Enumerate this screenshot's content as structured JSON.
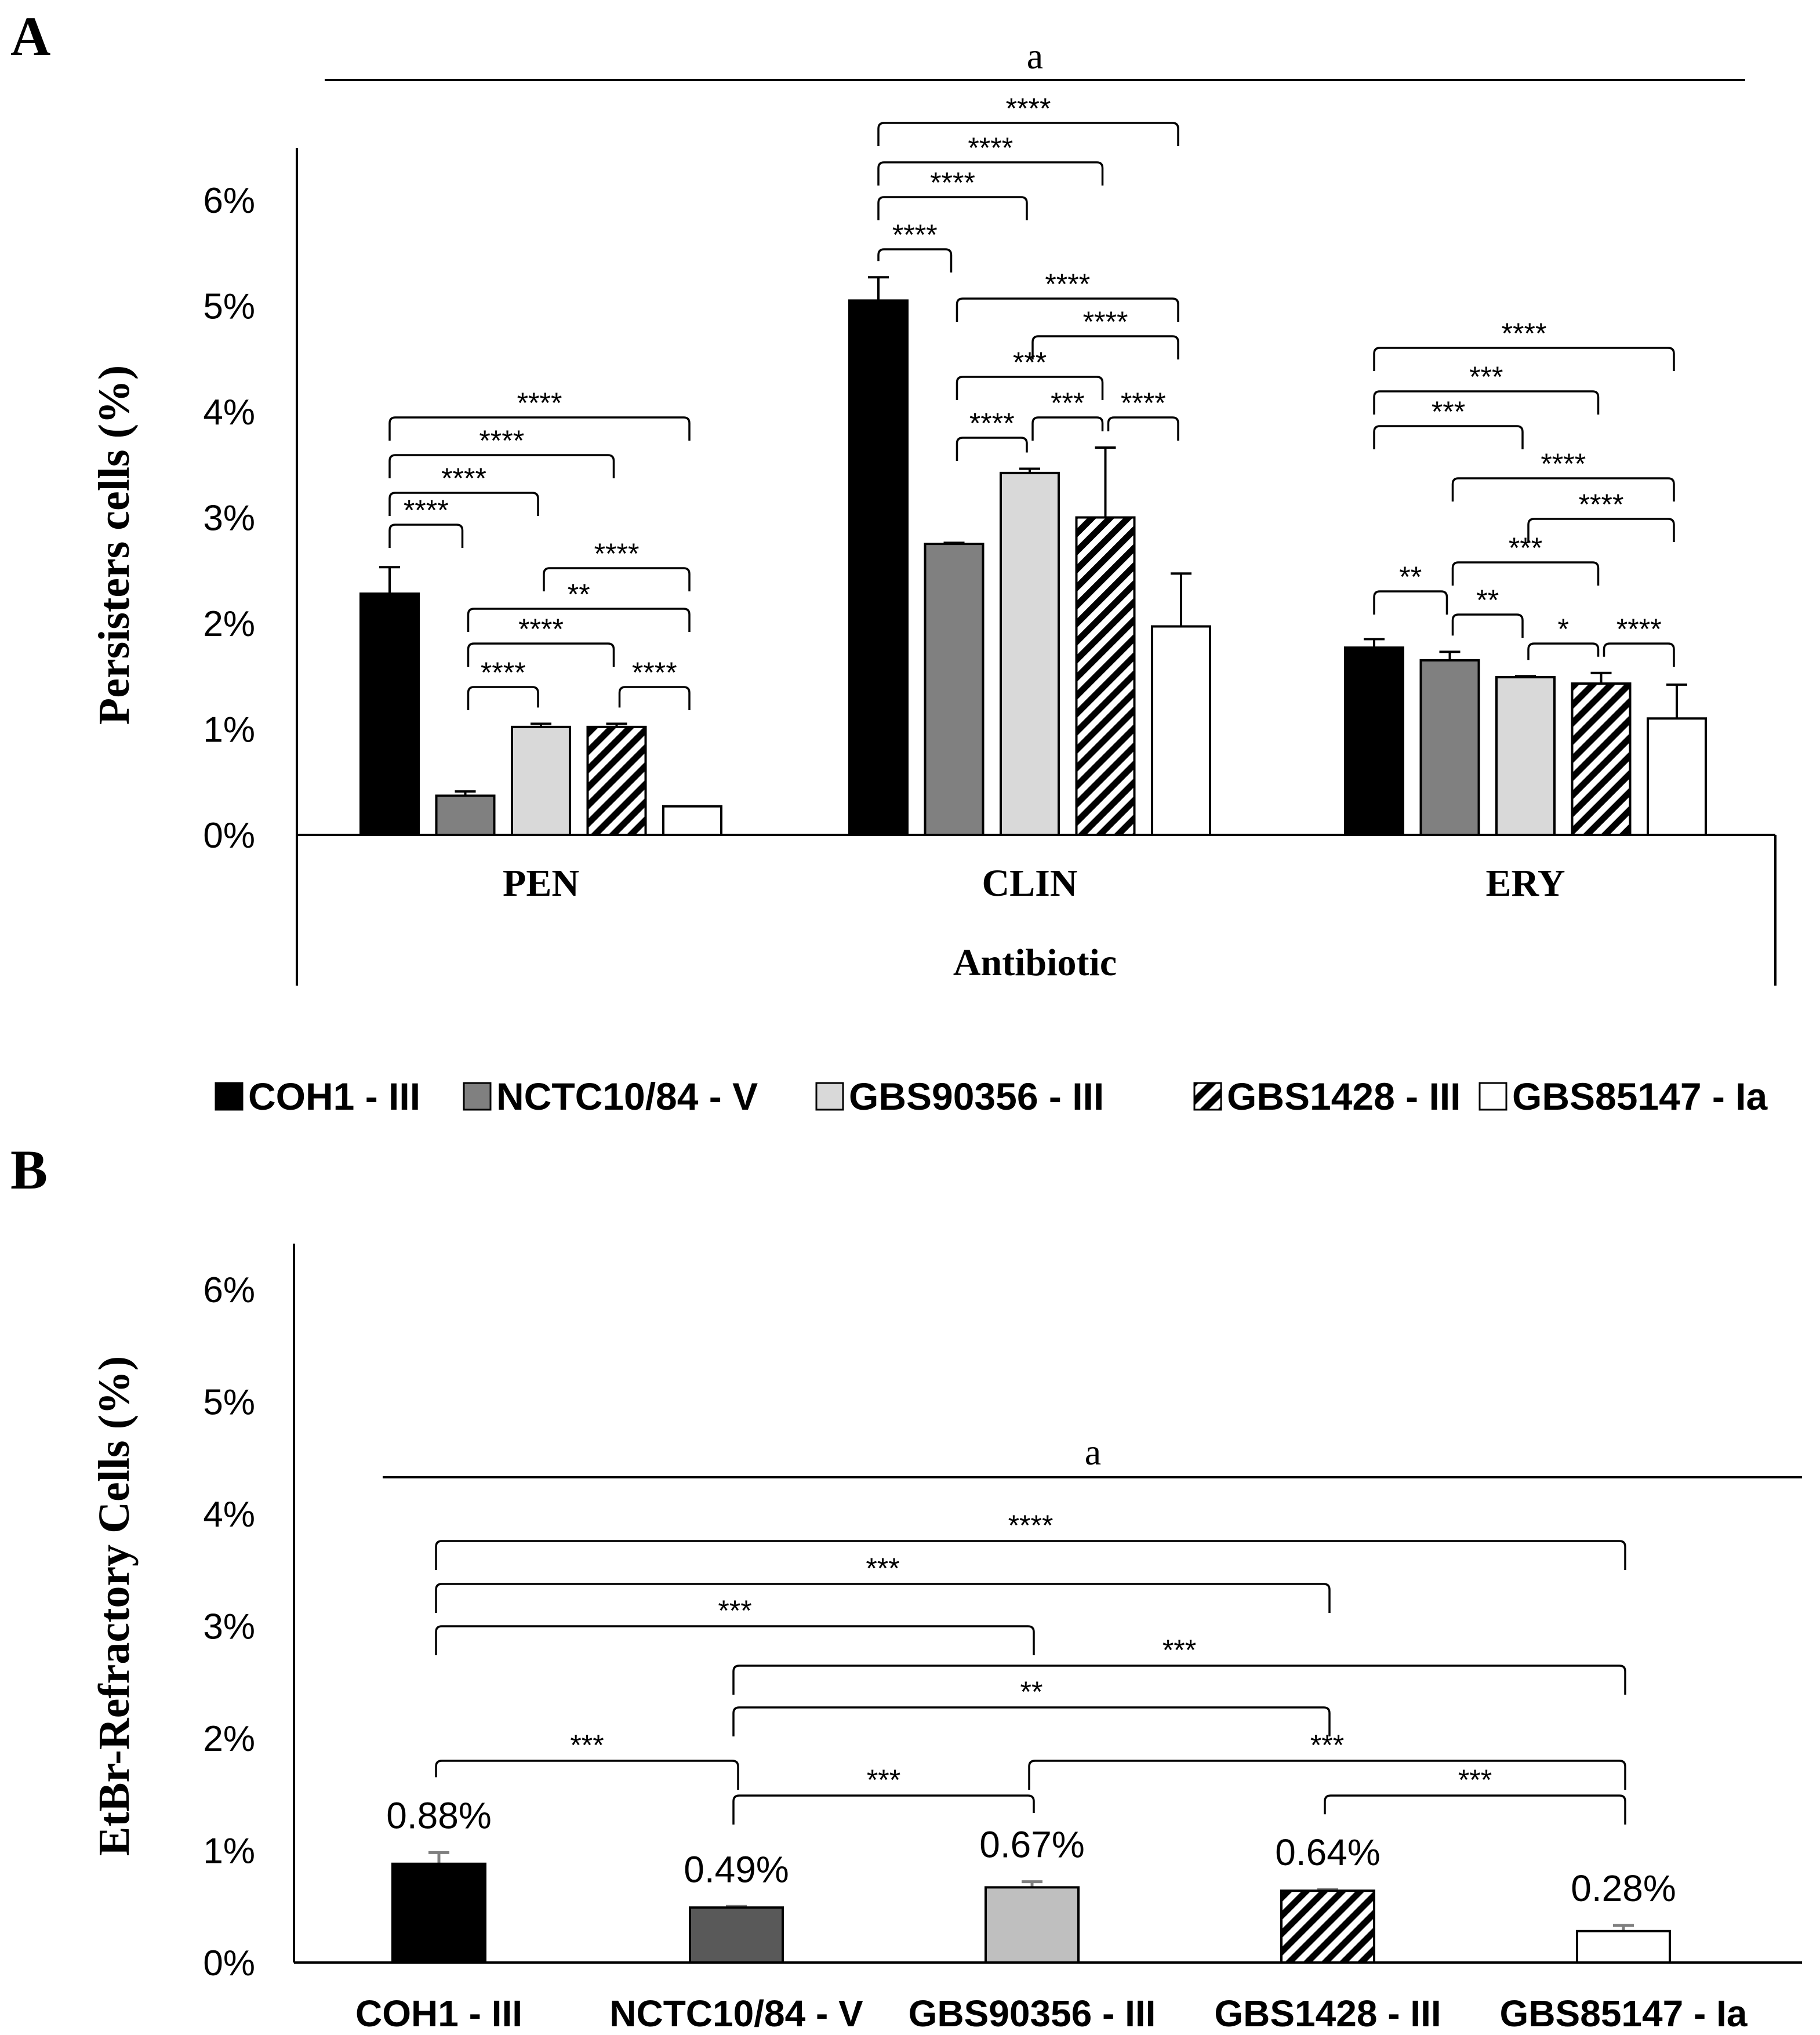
{
  "colors": {
    "ink": "#000000",
    "coh1": "#000000",
    "nctc": "#808080",
    "gbs90356_a": "#d9d9d9",
    "gbs90356_b": "#bfbfbf",
    "nctc_b": "#595959",
    "white": "#ffffff",
    "errbar_b": "#7f7f7f"
  },
  "legend": [
    {
      "name": "COH1 - III",
      "pattern": "black"
    },
    {
      "name": "NCTC10/84 - V",
      "pattern": "gray"
    },
    {
      "name": "GBS90356 - III",
      "pattern": "light"
    },
    {
      "name": "GBS1428 - III",
      "pattern": "hatch"
    },
    {
      "name": "GBS85147 - Ia",
      "pattern": "white"
    }
  ],
  "chart_data": [
    {
      "panel": "A",
      "type": "bar",
      "ylabel": "Persisters cells (%)",
      "xlabel": "Antibiotic",
      "ylim": [
        0,
        6.5
      ],
      "yticks": [
        "0%",
        "1%",
        "2%",
        "3%",
        "4%",
        "5%",
        "6%"
      ],
      "top_annotation": "a",
      "categories": [
        "PEN",
        "CLIN",
        "ERY"
      ],
      "series": [
        {
          "name": "COH1 - III",
          "values": [
            2.28,
            5.05,
            1.77
          ],
          "errors": [
            0.25,
            0.22,
            0.08
          ]
        },
        {
          "name": "NCTC10/84 - V",
          "values": [
            0.37,
            2.75,
            1.65
          ],
          "errors": [
            0.04,
            0.01,
            0.08
          ]
        },
        {
          "name": "GBS90356 - III",
          "values": [
            1.02,
            3.42,
            1.49
          ],
          "errors": [
            0.03,
            0.04,
            0.01
          ]
        },
        {
          "name": "GBS1428 - III",
          "values": [
            1.02,
            3.0,
            1.43
          ],
          "errors": [
            0.03,
            0.66,
            0.1
          ]
        },
        {
          "name": "GBS85147 - Ia",
          "values": [
            0.27,
            1.97,
            1.1
          ],
          "errors": [
            0.0,
            0.5,
            0.32
          ]
        }
      ],
      "significance": [
        {
          "group": "PEN",
          "pairs": [
            [
              0,
              1,
              "****"
            ],
            [
              0,
              2,
              "****"
            ],
            [
              0,
              3,
              "****"
            ],
            [
              0,
              4,
              "****"
            ],
            [
              1,
              2,
              "****"
            ],
            [
              1,
              3,
              "****"
            ],
            [
              1,
              4,
              "**"
            ],
            [
              2,
              4,
              "****"
            ],
            [
              3,
              4,
              "****"
            ]
          ]
        },
        {
          "group": "CLIN",
          "pairs": [
            [
              0,
              1,
              "****"
            ],
            [
              0,
              2,
              "****"
            ],
            [
              0,
              3,
              "****"
            ],
            [
              0,
              4,
              "****"
            ],
            [
              1,
              2,
              "****"
            ],
            [
              1,
              3,
              "***"
            ],
            [
              1,
              4,
              "****"
            ],
            [
              2,
              3,
              "***"
            ],
            [
              2,
              4,
              "****"
            ],
            [
              3,
              4,
              "****"
            ]
          ]
        },
        {
          "group": "ERY",
          "pairs": [
            [
              0,
              1,
              "**"
            ],
            [
              0,
              2,
              "***"
            ],
            [
              0,
              3,
              "***"
            ],
            [
              0,
              4,
              "****"
            ],
            [
              1,
              2,
              "**"
            ],
            [
              1,
              3,
              "***"
            ],
            [
              1,
              4,
              "****"
            ],
            [
              2,
              4,
              "****"
            ],
            [
              2,
              3,
              "*"
            ],
            [
              3,
              4,
              "****"
            ]
          ]
        }
      ]
    },
    {
      "panel": "B",
      "type": "bar",
      "ylabel": "EtBr-Refractory Cells (%)",
      "ylim": [
        0,
        6.5
      ],
      "yticks": [
        "0%",
        "1%",
        "2%",
        "3%",
        "4%",
        "5%",
        "6%"
      ],
      "top_annotation": "a",
      "categories": [
        "COH1 - III",
        "NCTC10/84 - V",
        "GBS90356 - III",
        "GBS1428 - III",
        "GBS85147 - Ia"
      ],
      "values": [
        0.88,
        0.49,
        0.67,
        0.64,
        0.28
      ],
      "errors": [
        0.1,
        0.01,
        0.05,
        0.01,
        0.05
      ],
      "data_labels": [
        "0.88%",
        "0.49%",
        "0.67%",
        "0.64%",
        "0.28%"
      ],
      "significance": [
        [
          0,
          4,
          "****"
        ],
        [
          0,
          3,
          "***"
        ],
        [
          0,
          2,
          "***"
        ],
        [
          1,
          4,
          "***"
        ],
        [
          1,
          3,
          "**"
        ],
        [
          0,
          1,
          "***"
        ],
        [
          2,
          4,
          "***"
        ],
        [
          1,
          2,
          "***"
        ],
        [
          3,
          4,
          "***"
        ]
      ]
    }
  ],
  "panel_labels": [
    "A",
    "B"
  ]
}
